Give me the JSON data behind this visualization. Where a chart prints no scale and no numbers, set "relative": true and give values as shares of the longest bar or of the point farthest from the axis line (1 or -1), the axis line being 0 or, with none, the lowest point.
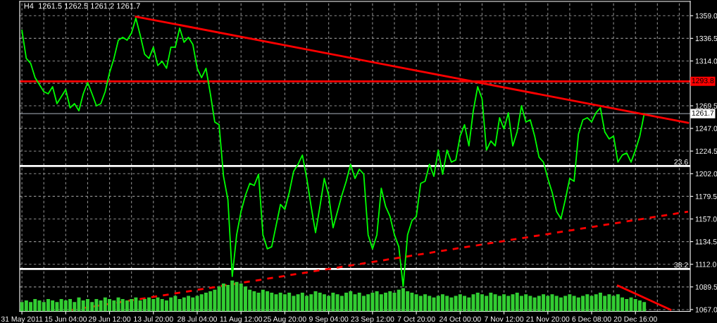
{
  "chart_data": [
    {
      "type": "line",
      "title": "H4  1261.5 1262.5 1261.2 1261.7",
      "categories": [
        "31 May 2011",
        null,
        null,
        null,
        null,
        null,
        null,
        null,
        null,
        null,
        "15 Jun 04:00",
        null,
        null,
        null,
        null,
        null,
        null,
        null,
        null,
        null,
        "29 Jun 12:00",
        null,
        null,
        null,
        null,
        null,
        null,
        null,
        null,
        null,
        "13 Jul 20:00",
        null,
        null,
        null,
        null,
        null,
        null,
        null,
        null,
        null,
        "28 Jul 04:00",
        null,
        null,
        null,
        null,
        null,
        null,
        null,
        null,
        null,
        "11 Aug 12:00",
        null,
        null,
        null,
        null,
        null,
        null,
        null,
        null,
        null,
        "25 Aug 20:00",
        null,
        null,
        null,
        null,
        null,
        null,
        null,
        null,
        null,
        "9 Sep 04:00",
        null,
        null,
        null,
        null,
        null,
        null,
        null,
        null,
        null,
        "23 Sep 12:00",
        null,
        null,
        null,
        null,
        null,
        null,
        null,
        null,
        null,
        "7 Oct 20:00",
        null,
        null,
        null,
        null,
        null,
        null,
        null,
        null,
        null,
        "24 Oct 00:00",
        null,
        null,
        null,
        null,
        null,
        null,
        null,
        null,
        null,
        "7 Nov 12:00",
        null,
        null,
        null,
        null,
        null,
        null,
        null,
        null,
        null,
        "21 Nov 20:00",
        null,
        null,
        null,
        null,
        null,
        null,
        null,
        null,
        null,
        "6 Dec 08:00",
        null,
        null,
        null,
        null,
        null,
        null,
        null,
        null,
        null,
        "20 Dec 16:00",
        null,
        null,
        null,
        null,
        null,
        null,
        null,
        null,
        null,
        null,
        null,
        null
      ],
      "series": [
        {
          "color": "#00ff00",
          "values": [
            1344.5,
            1316.5,
            1311.6,
            1297.5,
            1290.5,
            1283.5,
            1281.4,
            1288.4,
            1271.6,
            1278.6,
            1285.6,
            1267.4,
            1271.6,
            1264.6,
            1281.4,
            1292.6,
            1281.4,
            1269.5,
            1271.6,
            1283.5,
            1302.4,
            1316.5,
            1334.7,
            1337.5,
            1334.7,
            1341.7,
            1356.5,
            1339.6,
            1320.7,
            1316.5,
            1327.7,
            1309.5,
            1313.7,
            1306.7,
            1327.7,
            1327.7,
            1346.6,
            1332.6,
            1337.5,
            1330.5,
            1306.7,
            1297.5,
            1306.7,
            1281.4,
            1253.4,
            1250.6,
            1199.4,
            1176.3,
            1100.0,
            1141.3,
            1164.4,
            1180.5,
            1192.4,
            1190.3,
            1201.5,
            1141.3,
            1127.3,
            1129.4,
            1150.4,
            1171.4,
            1166.5,
            1183.3,
            1204.3,
            1211.3,
            1220.5,
            1197.3,
            1169.3,
            1143.4,
            1169.3,
            1197.3,
            1180.5,
            1148.3,
            1164.4,
            1180.5,
            1194.5,
            1211.3,
            1197.3,
            1206.4,
            1201.5,
            1141.3,
            1127.3,
            1141.3,
            1187.5,
            1169.3,
            1159.5,
            1141.3,
            1129.4,
            1090.0,
            1141.3,
            1155.3,
            1159.5,
            1192.4,
            1194.5,
            1211.3,
            1199.4,
            1225.4,
            1201.5,
            1225.4,
            1213.5,
            1215.6,
            1239.4,
            1250.6,
            1229.6,
            1264.6,
            1288.4,
            1276.5,
            1225.4,
            1234.5,
            1229.6,
            1257.6,
            1246.4,
            1262.5,
            1229.6,
            1243.6,
            1269.5,
            1253.4,
            1255.5,
            1239.4,
            1218.4,
            1213.5,
            1197.3,
            1183.3,
            1164.4,
            1157.4,
            1176.3,
            1197.3,
            1194.5,
            1241.5,
            1255.5,
            1257.6,
            1253.4,
            1262.5,
            1267.4,
            1243.6,
            1236.6,
            1239.4,
            1213.5,
            1220.5,
            1222.6,
            1213.5,
            1225.4,
            1239.4,
            1261.7,
            null,
            null,
            null,
            null,
            null,
            null,
            null,
            null,
            null,
            null
          ]
        },
        {
          "color": "#ff0000",
          "values": [
            null,
            null,
            null,
            null,
            null,
            null,
            null,
            null,
            null,
            null,
            null,
            null,
            null,
            null,
            null,
            null,
            null,
            null,
            null,
            null,
            null,
            null,
            null,
            null,
            null,
            null,
            1358.1,
            null,
            null,
            null,
            null,
            null,
            null,
            null,
            null,
            null,
            null,
            null,
            null,
            null,
            null,
            null,
            null,
            null,
            null,
            null,
            null,
            null,
            null,
            null,
            null,
            null,
            null,
            null,
            null,
            null,
            null,
            null,
            null,
            null,
            null,
            null,
            null,
            null,
            null,
            null,
            null,
            null,
            null,
            null,
            null,
            null,
            null,
            null,
            null,
            null,
            null,
            null,
            null,
            null,
            null,
            null,
            null,
            null,
            null,
            null,
            null,
            null,
            null,
            null,
            null,
            null,
            null,
            null,
            null,
            null,
            null,
            null,
            null,
            null,
            null,
            null,
            null,
            null,
            null,
            null,
            null,
            null,
            null,
            null,
            null,
            null,
            null,
            null,
            null,
            null,
            null,
            null,
            null,
            null,
            null,
            null,
            null,
            null,
            null,
            null,
            null,
            null,
            null,
            null,
            null,
            null,
            null,
            null,
            null,
            null,
            null,
            null,
            null,
            null,
            null,
            null,
            null,
            null,
            null,
            null,
            null,
            null,
            null,
            null,
            null,
            null,
            1252.6
          ]
        },
        {
          "color": "#ff0000",
          "line_style": "dashed",
          "values": [
            null,
            null,
            null,
            null,
            null,
            null,
            null,
            null,
            null,
            null,
            null,
            1066.4,
            null,
            null,
            null,
            null,
            null,
            null,
            null,
            null,
            null,
            null,
            null,
            null,
            null,
            null,
            null,
            null,
            null,
            null,
            null,
            null,
            null,
            null,
            null,
            null,
            null,
            null,
            null,
            null,
            null,
            null,
            null,
            null,
            null,
            null,
            null,
            null,
            null,
            null,
            null,
            null,
            null,
            null,
            null,
            null,
            null,
            null,
            null,
            null,
            null,
            null,
            null,
            null,
            null,
            null,
            null,
            null,
            null,
            null,
            null,
            null,
            null,
            null,
            null,
            null,
            null,
            null,
            null,
            null,
            null,
            null,
            null,
            null,
            null,
            null,
            null,
            null,
            null,
            null,
            null,
            null,
            null,
            null,
            null,
            null,
            null,
            null,
            null,
            null,
            null,
            null,
            null,
            null,
            null,
            null,
            null,
            null,
            null,
            null,
            null,
            null,
            null,
            null,
            null,
            null,
            null,
            null,
            null,
            null,
            null,
            null,
            null,
            null,
            null,
            null,
            null,
            null,
            null,
            null,
            null,
            null,
            null,
            null,
            null,
            null,
            null,
            null,
            null,
            null,
            null,
            null,
            null,
            null,
            null,
            null,
            null,
            null,
            null,
            null,
            null,
            null,
            1164.3
          ]
        },
        {
          "color": "#ff0000",
          "values": [
            null,
            null,
            null,
            null,
            null,
            null,
            null,
            null,
            null,
            null,
            null,
            null,
            null,
            null,
            null,
            null,
            null,
            null,
            null,
            null,
            null,
            null,
            null,
            null,
            null,
            null,
            null,
            null,
            null,
            null,
            null,
            null,
            null,
            null,
            null,
            null,
            null,
            null,
            null,
            null,
            null,
            null,
            null,
            null,
            null,
            null,
            null,
            null,
            null,
            null,
            null,
            null,
            null,
            null,
            null,
            null,
            null,
            null,
            null,
            null,
            null,
            null,
            null,
            null,
            null,
            null,
            null,
            null,
            null,
            null,
            null,
            null,
            null,
            null,
            null,
            null,
            null,
            null,
            null,
            null,
            null,
            null,
            null,
            null,
            null,
            null,
            null,
            null,
            null,
            null,
            null,
            null,
            null,
            null,
            null,
            null,
            null,
            null,
            null,
            null,
            null,
            null,
            null,
            null,
            null,
            null,
            null,
            null,
            null,
            null,
            null,
            null,
            null,
            null,
            null,
            null,
            null,
            null,
            null,
            null,
            null,
            null,
            null,
            null,
            null,
            null,
            null,
            null,
            null,
            null,
            null,
            null,
            null,
            null,
            null,
            null,
            1090.8,
            null,
            null,
            null,
            null,
            null,
            null,
            null,
            null,
            null,
            null,
            null,
            1066.8,
            null,
            null,
            null,
            null
          ]
        }
      ],
      "ylim": [
        1065.2,
        1373.2
      ],
      "yticks": [
        {
          "value": 1067,
          "label": "1067.0"
        },
        {
          "value": 1089.5,
          "label": "1089.5"
        },
        {
          "value": 1112,
          "label": "1112.0"
        },
        {
          "value": 1134.5,
          "label": "1134.5"
        },
        {
          "value": 1157,
          "label": "1157.0"
        },
        {
          "value": 1179.5,
          "label": "1179.5"
        },
        {
          "value": 1202,
          "label": "1202.0"
        },
        {
          "value": 1224.5,
          "label": "1224.5"
        },
        {
          "value": 1247,
          "label": "1247.0"
        },
        {
          "value": 1269.5,
          "label": "1269.5"
        },
        {
          "value": 1291.8,
          "label": null
        },
        {
          "value": 1314,
          "label": "1314.0"
        },
        {
          "value": 1336.5,
          "label": "1336.5"
        },
        {
          "value": 1359,
          "label": "1359.0"
        }
      ],
      "ref_lines": [
        {
          "axis": "y",
          "value": 1293.8,
          "label": "1293.8",
          "color": "#ff0000"
        },
        {
          "axis": "y",
          "value": 1261.7,
          "label": "1261.7",
          "color": "#8a8f99"
        },
        {
          "axis": "y",
          "value": 1209.6,
          "color": "#ffffff"
        },
        {
          "axis": "y",
          "value": 1107.3,
          "color": "#ffffff"
        }
      ],
      "annotations": [
        {
          "text": "23.6",
          "y": 1209.6
        },
        {
          "text": "38.2",
          "y": 1107.3
        }
      ],
      "grid": true,
      "marker": "none"
    },
    {
      "type": "bar",
      "relative": true,
      "categories": [
        null,
        null,
        null,
        null,
        null,
        null,
        null,
        null,
        null,
        null,
        null,
        null,
        null,
        null,
        null,
        null,
        null,
        null,
        null,
        null,
        null,
        null,
        null,
        null,
        null,
        null,
        null,
        null,
        null,
        null,
        null,
        null,
        null,
        null,
        null,
        null,
        null,
        null,
        null,
        null,
        null,
        null,
        null,
        null,
        null,
        null,
        null,
        null,
        null,
        null,
        null,
        null,
        null,
        null,
        null,
        null,
        null,
        null,
        null,
        null,
        null,
        null,
        null,
        null,
        null,
        null,
        null,
        null,
        null,
        null,
        null,
        null,
        null,
        null,
        null,
        null,
        null,
        null,
        null,
        null,
        null,
        null,
        null,
        null,
        null,
        null,
        null,
        null,
        null,
        null,
        null,
        null,
        null,
        null,
        null,
        null,
        null,
        null,
        null,
        null,
        null,
        null,
        null,
        null,
        null,
        null,
        null,
        null,
        null,
        null,
        null,
        null,
        null,
        null,
        null,
        null,
        null,
        null,
        null,
        null,
        null,
        null,
        null,
        null,
        null,
        null,
        null,
        null,
        null,
        null,
        null,
        null,
        null,
        null,
        null,
        null,
        null,
        null,
        null,
        null,
        null,
        null,
        null,
        null,
        null,
        null,
        null,
        null,
        null,
        null,
        null,
        null,
        null
      ],
      "color": "#32cd32",
      "values": [
        0.3,
        0.35,
        0.3,
        0.4,
        0.35,
        0.3,
        0.4,
        0.35,
        0.3,
        0.4,
        0.35,
        0.4,
        0.3,
        0.45,
        0.35,
        0.4,
        0.3,
        0.4,
        0.35,
        0.45,
        0.4,
        0.35,
        0.45,
        0.4,
        0.35,
        0.4,
        0.45,
        0.35,
        0.4,
        0.45,
        0.4,
        0.45,
        0.4,
        0.35,
        0.45,
        0.5,
        0.4,
        0.45,
        0.5,
        0.45,
        0.5,
        0.55,
        0.6,
        0.65,
        0.7,
        0.8,
        0.9,
        0.85,
        1,
        0.95,
        0.9,
        0.8,
        0.7,
        0.65,
        0.6,
        0.7,
        0.65,
        0.6,
        0.55,
        0.6,
        0.55,
        0.6,
        0.5,
        0.55,
        0.6,
        0.5,
        0.55,
        0.65,
        0.6,
        0.55,
        0.5,
        0.6,
        0.55,
        0.5,
        0.6,
        0.65,
        0.55,
        0.6,
        0.5,
        0.55,
        0.6,
        0.65,
        0.55,
        0.6,
        0.65,
        0.6,
        0.7,
        0.75,
        0.65,
        0.6,
        0.55,
        0.5,
        0.55,
        0.5,
        0.45,
        0.5,
        0.55,
        0.5,
        0.45,
        0.5,
        0.55,
        0.5,
        0.45,
        0.55,
        0.6,
        0.55,
        0.5,
        0.6,
        0.55,
        0.5,
        0.55,
        0.5,
        0.55,
        0.6,
        0.5,
        0.55,
        0.5,
        0.45,
        0.5,
        0.55,
        0.5,
        0.55,
        0.5,
        0.45,
        0.5,
        0.55,
        0.5,
        0.45,
        0.5,
        0.55,
        0.5,
        0.55,
        0.6,
        0.5,
        0.55,
        0.5,
        0.55,
        0.45,
        0.4,
        0.45,
        0.4,
        0.35,
        0.3,
        null,
        null,
        null,
        null,
        null,
        null,
        null,
        null,
        null,
        null
      ]
    }
  ]
}
